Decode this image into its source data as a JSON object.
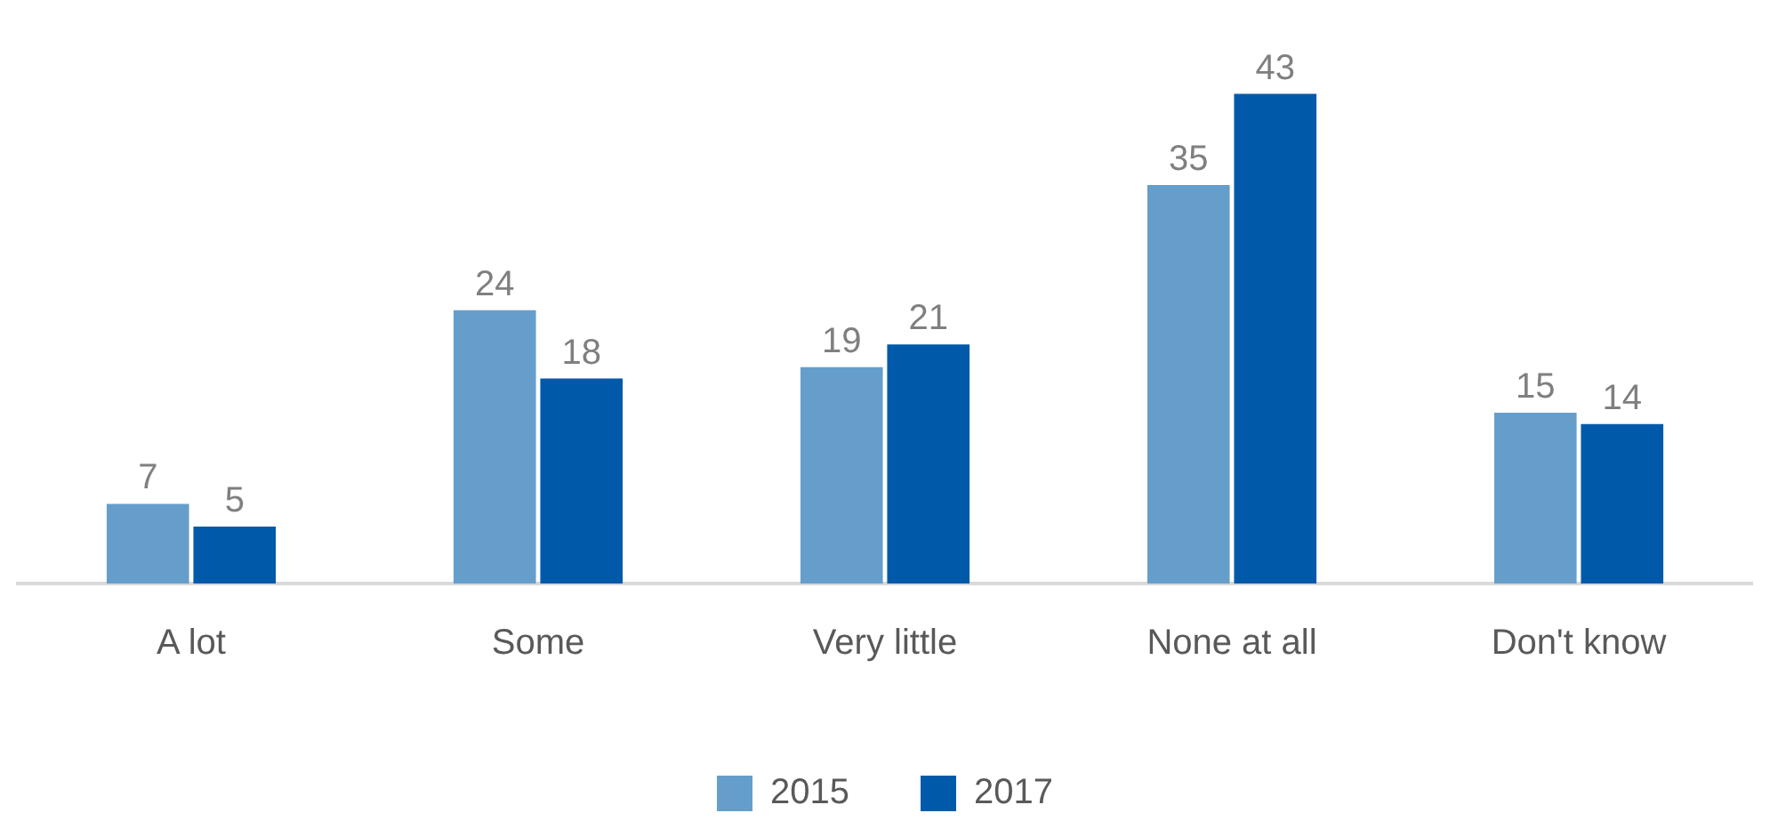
{
  "chart_data": {
    "type": "bar",
    "categories": [
      "A lot",
      "Some",
      "Very little",
      "None at all",
      "Don't know"
    ],
    "series": [
      {
        "name": "2015",
        "color": "#659ecb",
        "values": [
          7,
          24,
          19,
          35,
          15
        ]
      },
      {
        "name": "2017",
        "color": "#005aa9",
        "values": [
          5,
          18,
          21,
          43,
          14
        ]
      }
    ],
    "data_labels": true,
    "legend": "bottom",
    "grid": false
  }
}
